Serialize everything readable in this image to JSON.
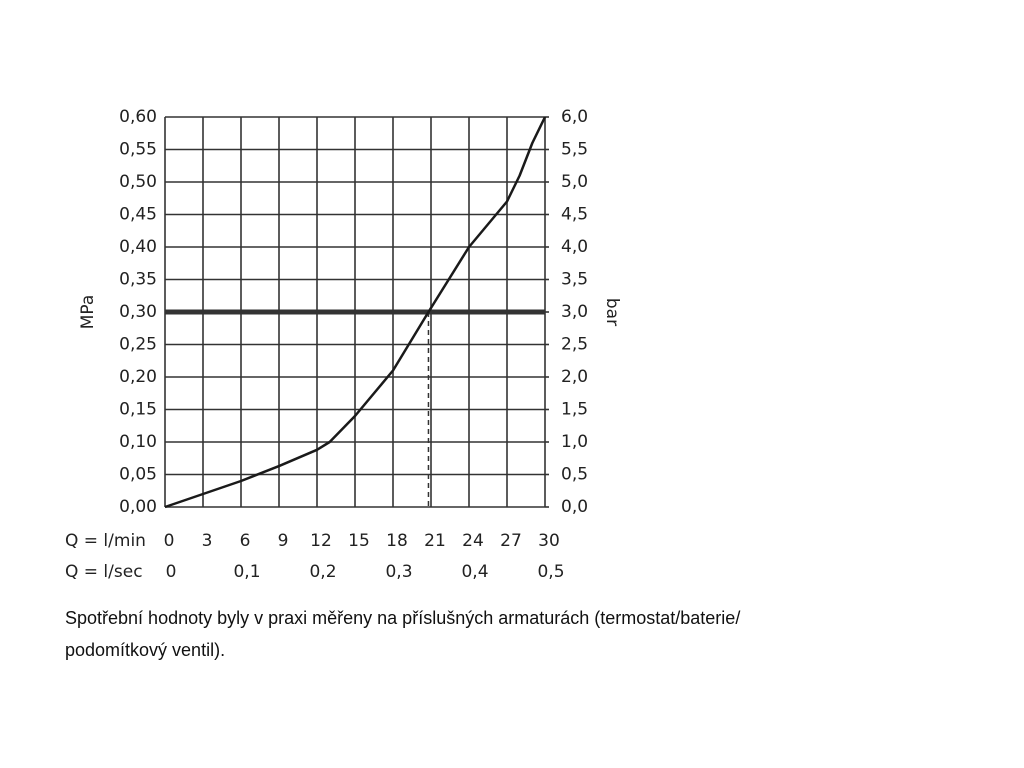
{
  "chart_data": {
    "type": "line",
    "y_label": "MPa",
    "y2_label": "bar",
    "x_row_label": "Q = l/min",
    "x2_row_label": "Q = l/sec",
    "x": [
      0,
      3,
      6,
      9,
      12,
      13,
      15,
      18,
      20.8,
      24,
      27,
      28,
      29,
      30
    ],
    "series": [
      {
        "color": "#1a1a1a",
        "values": [
          0,
          0.02,
          0.04,
          0.063,
          0.088,
          0.1,
          0.14,
          0.21,
          0.3,
          0.4,
          0.47,
          0.51,
          0.56,
          0.6
        ]
      }
    ],
    "xlim": [
      0,
      30
    ],
    "xticks": [
      0,
      3,
      6,
      9,
      12,
      15,
      18,
      21,
      24,
      27,
      30
    ],
    "x2lim": [
      0,
      0.5
    ],
    "x2ticks": [
      0,
      {
        "value": 0.1,
        "label": "0,1"
      },
      {
        "value": 0.2,
        "label": "0,2"
      },
      {
        "value": 0.3,
        "label": "0,3"
      },
      {
        "value": 0.4,
        "label": "0,4"
      },
      {
        "value": 0.5,
        "label": "0,5"
      }
    ],
    "ylim": [
      0,
      0.6
    ],
    "yticks": [
      {
        "value": 0,
        "label": "0,00"
      },
      {
        "value": 0.05,
        "label": "0,05"
      },
      {
        "value": 0.1,
        "label": "0,10"
      },
      {
        "value": 0.15,
        "label": "0,15"
      },
      {
        "value": 0.2,
        "label": "0,20"
      },
      {
        "value": 0.25,
        "label": "0,25"
      },
      {
        "value": 0.3,
        "label": "0,30"
      },
      {
        "value": 0.35,
        "label": "0,35"
      },
      {
        "value": 0.4,
        "label": "0,40"
      },
      {
        "value": 0.45,
        "label": "0,45"
      },
      {
        "value": 0.5,
        "label": "0,50"
      },
      {
        "value": 0.55,
        "label": "0,55"
      },
      {
        "value": 0.6,
        "label": "0,60"
      }
    ],
    "y2lim": [
      0,
      6
    ],
    "y2ticks": [
      {
        "value": 0,
        "label": "0,0"
      },
      {
        "value": 0.5,
        "label": "0,5"
      },
      {
        "value": 1,
        "label": "1,0"
      },
      {
        "value": 1.5,
        "label": "1,5"
      },
      {
        "value": 2,
        "label": "2,0"
      },
      {
        "value": 2.5,
        "label": "2,5"
      },
      {
        "value": 3,
        "label": "3,0"
      },
      {
        "value": 3.5,
        "label": "3,5"
      },
      {
        "value": 4,
        "label": "4,0"
      },
      {
        "value": 4.5,
        "label": "4,5"
      },
      {
        "value": 5,
        "label": "5,0"
      },
      {
        "value": 5.5,
        "label": "5,5"
      },
      {
        "value": 6,
        "label": "6,0"
      }
    ],
    "reference_y": 0.3,
    "reference_x": 20.8,
    "grid": true,
    "caption": [
      "Spotřební hodnoty byly v praxi měřeny na příslušných armaturách (termostat/baterie/",
      "podomítkový ventil)."
    ]
  }
}
